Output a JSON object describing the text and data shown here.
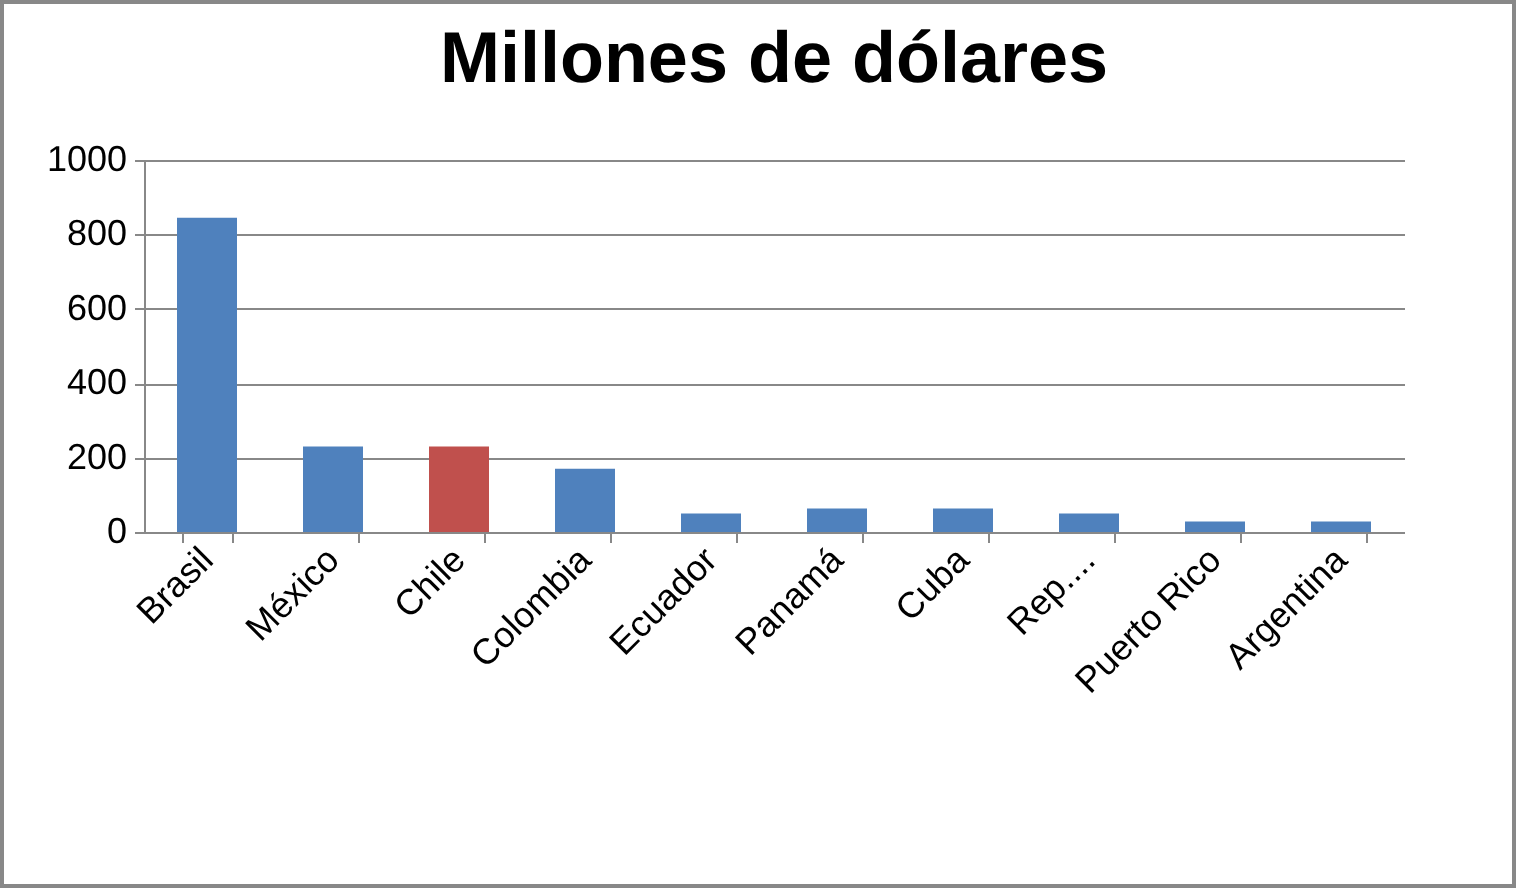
{
  "chart_data": {
    "type": "bar",
    "title": "Millones de dólares",
    "categories": [
      "Brasil",
      "México",
      "Chile",
      "Colombia",
      "Ecuador",
      "Panamá",
      "Cuba",
      "Rep....",
      "Puerto Rico",
      "Argentina"
    ],
    "values": [
      845,
      230,
      230,
      170,
      50,
      63,
      63,
      50,
      28,
      28
    ],
    "colors": [
      "#4f81bd",
      "#4f81bd",
      "#c0504d",
      "#4f81bd",
      "#4f81bd",
      "#4f81bd",
      "#4f81bd",
      "#4f81bd",
      "#4f81bd",
      "#4f81bd"
    ],
    "ylim": [
      0,
      1000
    ],
    "yticks": [
      0,
      200,
      400,
      600,
      800,
      1000
    ],
    "grid": "y"
  }
}
